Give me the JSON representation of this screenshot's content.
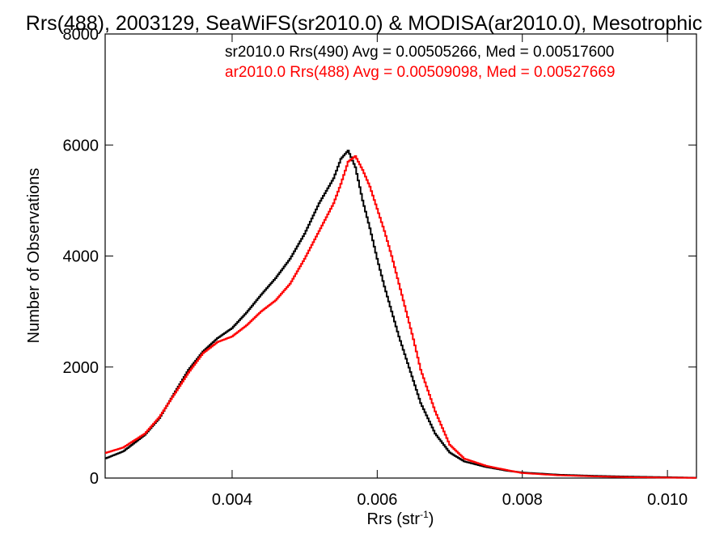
{
  "chart_data": {
    "type": "line",
    "title": "Rrs(488), 2003129, SeaWiFS(sr2010.0) & MODISA(ar2010.0), Mesotrophic",
    "xlabel": "Rrs (str",
    "xlabel_sup": "-1",
    "xlabel_close": ")",
    "ylabel": "Number of Observations",
    "xlim": [
      0.00225,
      0.0104
    ],
    "ylim": [
      0,
      8000
    ],
    "xticks": [
      0.004,
      0.006,
      0.008,
      0.01
    ],
    "xtick_labels": [
      "0.004",
      "0.006",
      "0.008",
      "0.010"
    ],
    "yticks": [
      0,
      2000,
      4000,
      6000,
      8000
    ],
    "ytick_labels": [
      "0",
      "2000",
      "4000",
      "6000",
      "8000"
    ],
    "grid": false,
    "series": [
      {
        "name": "sr2010.0 Rrs(490) Avg = 0.00505266, Med = 0.00517600",
        "color": "#000000",
        "x": [
          0.00225,
          0.0025,
          0.0028,
          0.003,
          0.0032,
          0.0034,
          0.0036,
          0.0038,
          0.004,
          0.0042,
          0.0044,
          0.0046,
          0.0048,
          0.005,
          0.0052,
          0.0054,
          0.0055,
          0.0056,
          0.0057,
          0.0058,
          0.0059,
          0.006,
          0.0061,
          0.0062,
          0.0063,
          0.0064,
          0.0065,
          0.0066,
          0.0068,
          0.007,
          0.0072,
          0.0075,
          0.0078,
          0.008,
          0.0085,
          0.009,
          0.0095,
          0.01,
          0.0104
        ],
        "values": [
          350,
          480,
          780,
          1080,
          1520,
          1950,
          2280,
          2520,
          2700,
          2980,
          3300,
          3600,
          3950,
          4400,
          4950,
          5400,
          5750,
          5900,
          5600,
          5000,
          4500,
          3950,
          3450,
          3000,
          2550,
          2150,
          1750,
          1350,
          800,
          460,
          300,
          200,
          130,
          100,
          60,
          40,
          25,
          15,
          5
        ]
      },
      {
        "name": "ar2010.0 Rrs(488) Avg = 0.00509098, Med = 0.00527669",
        "color": "#ff0000",
        "x": [
          0.00225,
          0.0025,
          0.0028,
          0.003,
          0.0032,
          0.0034,
          0.0036,
          0.0038,
          0.004,
          0.0042,
          0.0044,
          0.0046,
          0.0048,
          0.005,
          0.0052,
          0.0054,
          0.0055,
          0.0056,
          0.0057,
          0.0058,
          0.0059,
          0.006,
          0.0061,
          0.0062,
          0.0063,
          0.0064,
          0.0065,
          0.0066,
          0.0068,
          0.007,
          0.0072,
          0.0075,
          0.0078,
          0.008,
          0.0085,
          0.009,
          0.0095,
          0.01,
          0.0104
        ],
        "values": [
          450,
          550,
          800,
          1100,
          1500,
          1900,
          2250,
          2450,
          2550,
          2750,
          3000,
          3200,
          3500,
          3950,
          4450,
          4950,
          5300,
          5700,
          5800,
          5550,
          5250,
          4850,
          4450,
          4000,
          3500,
          3000,
          2500,
          1950,
          1200,
          600,
          350,
          220,
          140,
          90,
          50,
          30,
          15,
          8,
          3
        ]
      }
    ]
  }
}
